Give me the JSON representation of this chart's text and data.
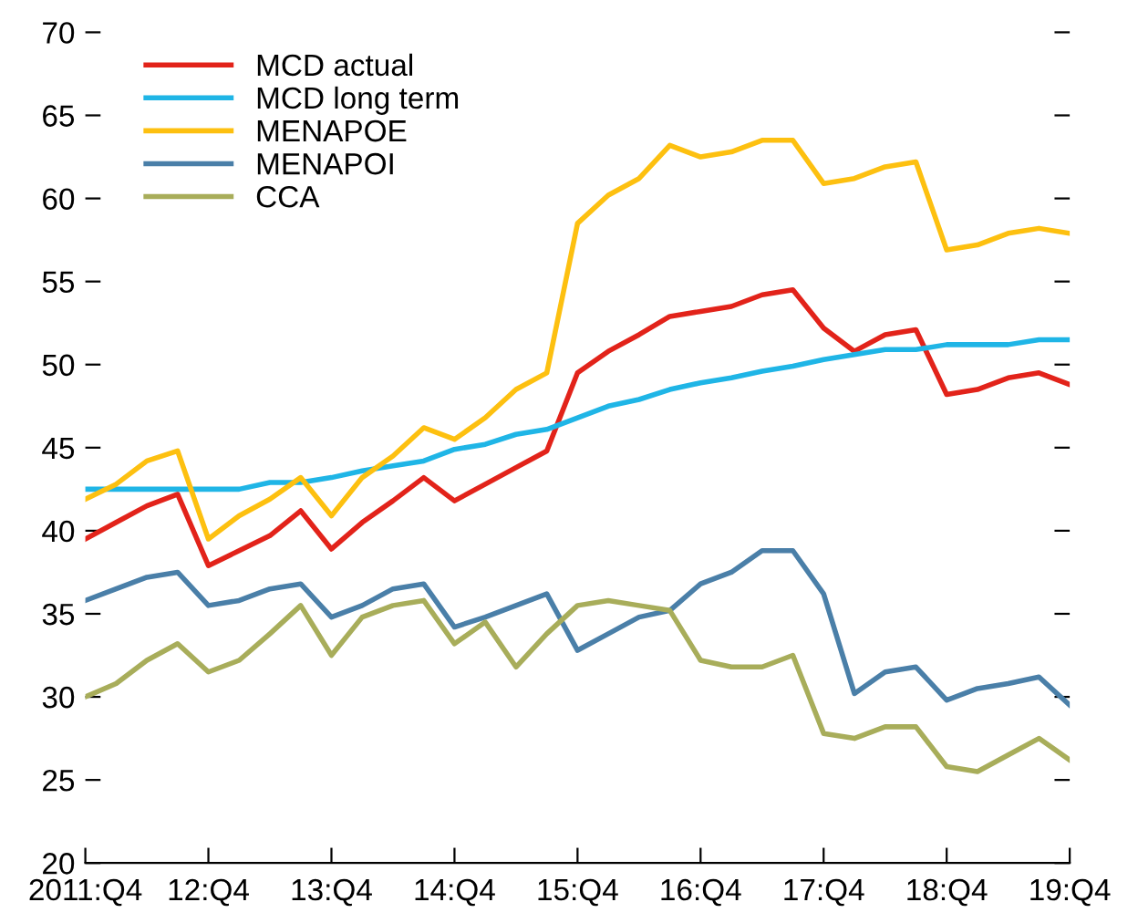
{
  "chart_data": {
    "type": "line",
    "categories": [
      "2011:Q4",
      null,
      null,
      null,
      "12:Q4",
      null,
      null,
      null,
      "13:Q4",
      null,
      null,
      null,
      "14:Q4",
      null,
      null,
      null,
      "15:Q4",
      null,
      null,
      null,
      "16:Q4",
      null,
      null,
      null,
      "17:Q4",
      null,
      null,
      null,
      "18:Q4",
      null,
      null,
      null,
      "19:Q4"
    ],
    "ylim": [
      20,
      70
    ],
    "yticks": [
      20,
      25,
      30,
      35,
      40,
      45,
      50,
      55,
      60,
      65,
      70
    ],
    "grid": false,
    "legend": "top left",
    "line_style": "solid",
    "marker": "none",
    "series": [
      {
        "name": "MCD actual",
        "color": "#e2231a",
        "values": [
          39.5,
          40.5,
          41.5,
          42.2,
          37.9,
          38.8,
          39.7,
          41.2,
          38.9,
          40.5,
          41.8,
          43.2,
          41.8,
          42.8,
          43.8,
          44.8,
          49.5,
          50.8,
          51.8,
          52.9,
          53.2,
          53.5,
          54.2,
          54.5,
          52.2,
          50.8,
          51.8,
          52.1,
          48.2,
          48.5,
          49.2,
          49.5,
          48.8
        ]
      },
      {
        "name": "MCD long term",
        "color": "#1fb5e6",
        "values": [
          42.5,
          42.5,
          42.5,
          42.5,
          42.5,
          42.5,
          42.9,
          42.9,
          43.2,
          43.6,
          43.9,
          44.2,
          44.9,
          45.2,
          45.8,
          46.1,
          46.8,
          47.5,
          47.9,
          48.5,
          48.9,
          49.2,
          49.6,
          49.9,
          50.3,
          50.6,
          50.9,
          50.9,
          51.2,
          51.2,
          51.2,
          51.5,
          51.5
        ]
      },
      {
        "name": "MENAPOE",
        "color": "#fdc010",
        "values": [
          41.9,
          42.8,
          44.2,
          44.8,
          39.5,
          40.9,
          41.9,
          43.2,
          40.9,
          43.2,
          44.5,
          46.2,
          45.5,
          46.8,
          48.5,
          49.5,
          58.5,
          60.2,
          61.2,
          63.2,
          62.5,
          62.8,
          63.5,
          63.5,
          60.9,
          61.2,
          61.9,
          62.2,
          56.9,
          57.2,
          57.9,
          58.2,
          57.9
        ]
      },
      {
        "name": "MENAPOI",
        "color": "#4a7fa8",
        "values": [
          35.8,
          36.5,
          37.2,
          37.5,
          35.5,
          35.8,
          36.5,
          36.8,
          34.8,
          35.5,
          36.5,
          36.8,
          34.2,
          34.8,
          35.5,
          36.2,
          32.8,
          33.8,
          34.8,
          35.2,
          36.8,
          37.5,
          38.8,
          38.8,
          36.2,
          30.2,
          31.5,
          31.8,
          29.8,
          30.5,
          30.8,
          31.2,
          29.5
        ]
      },
      {
        "name": "CCA",
        "color": "#a8ad5a",
        "values": [
          30.0,
          30.8,
          32.2,
          33.2,
          31.5,
          32.2,
          33.8,
          35.5,
          32.5,
          34.8,
          35.5,
          35.8,
          33.2,
          34.5,
          31.8,
          33.8,
          35.5,
          35.8,
          35.5,
          35.2,
          32.2,
          31.8,
          31.8,
          32.5,
          27.8,
          27.5,
          28.2,
          28.2,
          25.8,
          25.5,
          26.5,
          27.5,
          26.2
        ]
      }
    ]
  }
}
